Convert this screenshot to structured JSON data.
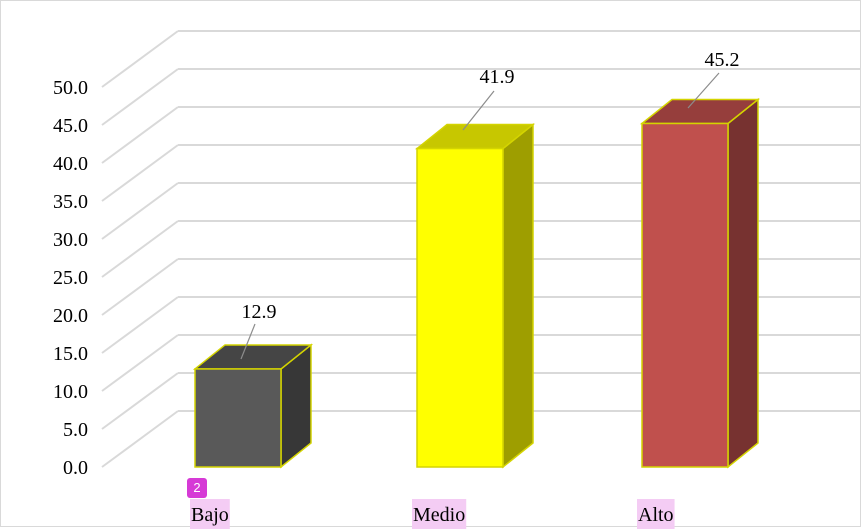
{
  "chart_data": {
    "type": "bar",
    "categories": [
      "Bajo",
      "Medio",
      "Alto"
    ],
    "values": [
      12.9,
      41.9,
      45.2
    ],
    "data_labels": [
      "12.9",
      "41.9",
      "45.2"
    ],
    "colors": [
      "#595959",
      "#ffff00",
      "#c0504d"
    ],
    "edge_color": "#d4d400",
    "title": "",
    "xlabel": "",
    "ylabel": "",
    "ylim": [
      0,
      50
    ],
    "yticks": [
      "0.0",
      "5.0",
      "10.0",
      "15.0",
      "20.0",
      "25.0",
      "30.0",
      "35.0",
      "40.0",
      "45.0",
      "50.0"
    ],
    "grid": true,
    "style": "3d-column"
  },
  "annotations": {
    "marker_badge": "2",
    "category_highlight_color": "#f4ccf4"
  }
}
